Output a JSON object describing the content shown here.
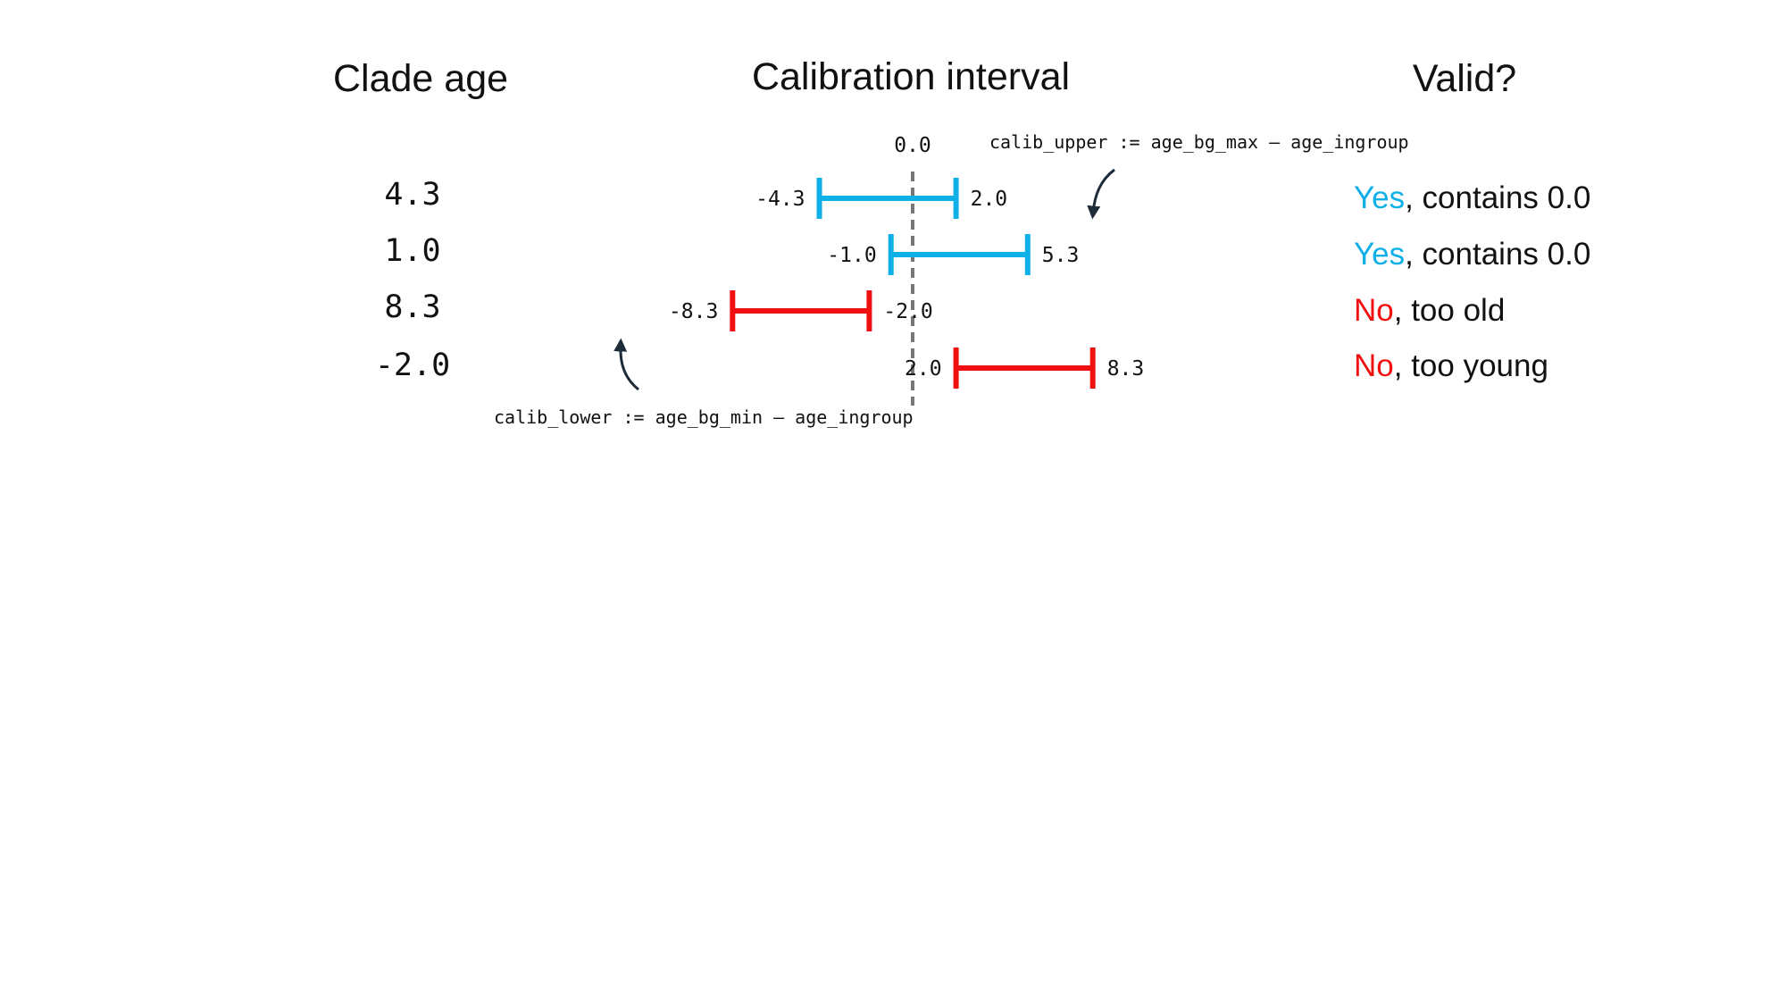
{
  "headings": {
    "clade_age": "Clade age",
    "calibration_interval": "Calibration interval",
    "valid": "Valid?"
  },
  "zero_label": "0.0",
  "formulas": {
    "upper": "calib_upper := age_bg_max – age_ingroup",
    "lower": "calib_lower := age_bg_min – age_ingroup"
  },
  "colors": {
    "valid": "#0fb0e8",
    "invalid": "#f01010",
    "zero_line": "#777777",
    "arrow": "#1e2b38"
  },
  "rows": [
    {
      "age": "4.3",
      "lower": -4.3,
      "upper": 2.0,
      "lower_label": "-4.3",
      "upper_label": "2.0",
      "valid": true,
      "verdict_word": "Yes",
      "verdict_rest": ", contains 0.0"
    },
    {
      "age": "1.0",
      "lower": -1.0,
      "upper": 5.3,
      "lower_label": "-1.0",
      "upper_label": "5.3",
      "valid": true,
      "verdict_word": "Yes",
      "verdict_rest": ", contains 0.0"
    },
    {
      "age": "8.3",
      "lower": -8.3,
      "upper": -2.0,
      "lower_label": "-8.3",
      "upper_label": "-2.0",
      "valid": false,
      "verdict_word": "No",
      "verdict_rest": ", too old"
    },
    {
      "age": "-2.0",
      "lower": 2.0,
      "upper": 8.3,
      "lower_label": "2.0",
      "upper_label": "8.3",
      "valid": false,
      "verdict_word": "No",
      "verdict_rest": ", too young"
    }
  ]
}
